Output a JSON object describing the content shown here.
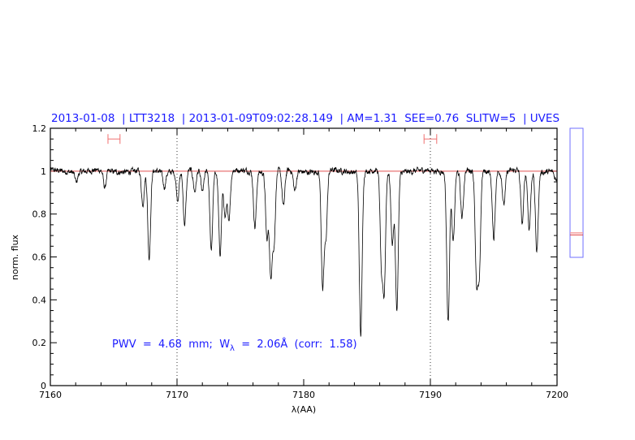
{
  "chart_data": {
    "type": "line",
    "title": "2013-01-08  | LTT3218  | 2013-01-09T09:02:28.149  | AM=1.31  SEE=0.76  SLITW=5  | UVES",
    "xlabel": "λ(AA)",
    "ylabel": "norm. flux",
    "xlim": [
      7160,
      7200
    ],
    "ylim": [
      0,
      1.2
    ],
    "x_ticks": [
      7160,
      7170,
      7180,
      7190,
      7200
    ],
    "y_ticks": [
      "0",
      "0.2",
      "0.4",
      "0.6",
      "0.8",
      "1",
      "1.2"
    ],
    "y_tick_values": [
      0,
      0.2,
      0.4,
      0.6,
      0.8,
      1.0,
      1.2
    ],
    "continuum_level": 1.0,
    "reference_lines_x": [
      7170,
      7190
    ],
    "red_intervals": [
      {
        "x_from": 7164.55,
        "x_to": 7165.5,
        "y": 1.15
      },
      {
        "x_from": 7189.5,
        "x_to": 7190.5,
        "y": 1.15
      }
    ],
    "absorption_lines": [
      {
        "x": 7162.05,
        "min_flux": 0.955
      },
      {
        "x": 7164.3,
        "min_flux": 0.92
      },
      {
        "x": 7167.3,
        "min_flux": 0.84
      },
      {
        "x": 7167.8,
        "min_flux": 0.59
      },
      {
        "x": 7169.0,
        "min_flux": 0.93
      },
      {
        "x": 7170.05,
        "min_flux": 0.87
      },
      {
        "x": 7170.6,
        "min_flux": 0.75
      },
      {
        "x": 7171.4,
        "min_flux": 0.9
      },
      {
        "x": 7172.0,
        "min_flux": 0.9
      },
      {
        "x": 7172.7,
        "min_flux": 0.64
      },
      {
        "x": 7173.4,
        "min_flux": 0.62
      },
      {
        "x": 7173.8,
        "min_flux": 0.78
      },
      {
        "x": 7174.1,
        "min_flux": 0.78
      },
      {
        "x": 7176.15,
        "min_flux": 0.74
      },
      {
        "x": 7177.1,
        "min_flux": 0.69
      },
      {
        "x": 7177.4,
        "min_flux": 0.51
      },
      {
        "x": 7177.65,
        "min_flux": 0.66
      },
      {
        "x": 7178.4,
        "min_flux": 0.83
      },
      {
        "x": 7179.3,
        "min_flux": 0.905
      },
      {
        "x": 7181.5,
        "min_flux": 0.45
      },
      {
        "x": 7181.75,
        "min_flux": 0.7
      },
      {
        "x": 7184.5,
        "min_flux": 0.235
      },
      {
        "x": 7186.15,
        "min_flux": 0.55
      },
      {
        "x": 7186.35,
        "min_flux": 0.45
      },
      {
        "x": 7187.0,
        "min_flux": 0.66
      },
      {
        "x": 7187.35,
        "min_flux": 0.35
      },
      {
        "x": 7191.4,
        "min_flux": 0.3
      },
      {
        "x": 7191.8,
        "min_flux": 0.67
      },
      {
        "x": 7192.5,
        "min_flux": 0.78
      },
      {
        "x": 7193.65,
        "min_flux": 0.49
      },
      {
        "x": 7193.85,
        "min_flux": 0.52
      },
      {
        "x": 7195.0,
        "min_flux": 0.69
      },
      {
        "x": 7195.8,
        "min_flux": 0.845
      },
      {
        "x": 7197.25,
        "min_flux": 0.75
      },
      {
        "x": 7197.8,
        "min_flux": 0.73
      },
      {
        "x": 7198.4,
        "min_flux": 0.63
      },
      {
        "x": 7199.9,
        "min_flux": 0.96
      }
    ],
    "annotation": {
      "pwv_part": "PWV  =  4.68  mm;  W",
      "subscript": "λ",
      "rest": "  =  2.06Å  (corr:  1.58)"
    },
    "side_indicator": {
      "marker_fraction": 0.18
    },
    "colors": {
      "title": "#1a1aff",
      "spectrum": "#000000",
      "continuum": "#e05050",
      "interval": "#f07070",
      "side_box": "#6f6fff"
    },
    "grid": false
  }
}
